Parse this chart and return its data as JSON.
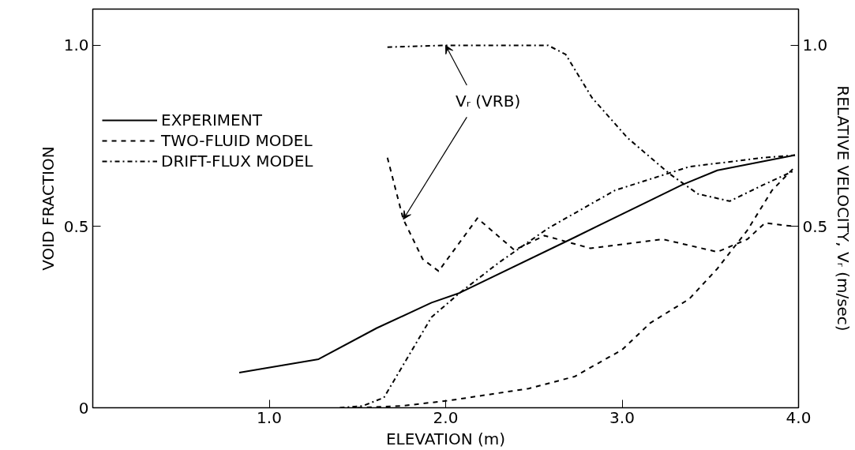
{
  "chart_data": {
    "type": "line",
    "xlabel": "ELEVATION (m)",
    "ylabel": "VOID FRACTION",
    "y2label": "RELATIVE VELOCITY, Vᵣ (m/sec)",
    "xlim": [
      0,
      4.0
    ],
    "xticks": [
      {
        "value": 1,
        "label": "1.0"
      },
      {
        "value": 2,
        "label": "2.0"
      },
      {
        "value": 3,
        "label": "3.0"
      },
      {
        "value": 4,
        "label": "4.0"
      }
    ],
    "ylim": [
      0,
      1.1
    ],
    "yticks": [
      0,
      0.5,
      {
        "value": 1,
        "label": "1.0"
      }
    ],
    "y2lim": [
      0,
      1.1
    ],
    "y2ticks": [
      0.5,
      {
        "value": 1,
        "label": "1.0"
      }
    ],
    "grid": false,
    "legend": "top left",
    "marker": "none",
    "annotations": [
      {
        "text": "Vᵣ (VRB)",
        "x": 2.0,
        "y": 1.0
      }
    ],
    "series": [
      {
        "name": "EXPERIMENT",
        "color": "#000000",
        "line_style": "solid",
        "x": [
          0.83,
          1.28,
          1.61,
          1.92,
          2.08,
          2.73,
          3.34,
          3.54,
          3.98
        ],
        "values": [
          0.097,
          0.134,
          0.22,
          0.29,
          0.317,
          0.47,
          0.615,
          0.655,
          0.697
        ]
      },
      {
        "name": "TWO-FLUID MODEL",
        "color": "#000000",
        "line_style": "dashed",
        "x": [
          1.5,
          1.75,
          2.02,
          2.47,
          2.73,
          3.0,
          3.16,
          3.38,
          3.54,
          3.71,
          3.85,
          3.98
        ],
        "values": [
          0.0,
          0.005,
          0.02,
          0.053,
          0.086,
          0.16,
          0.234,
          0.3,
          0.384,
          0.49,
          0.6,
          0.665
        ]
      },
      {
        "name": "DRIFT-FLUX MODEL",
        "color": "#000000",
        "line_style": "dashdot",
        "x": [
          1.4,
          1.53,
          1.65,
          1.78,
          1.92,
          2.08,
          2.3,
          2.58,
          2.96,
          3.38,
          3.8,
          3.98
        ],
        "values": [
          0.0,
          0.005,
          0.028,
          0.135,
          0.25,
          0.317,
          0.4,
          0.495,
          0.6,
          0.665,
          0.69,
          0.697
        ]
      },
      {
        "color": "#000000",
        "line_style": "dashed",
        "axis": "y2",
        "x": [
          1.67,
          1.76,
          1.87,
          1.96,
          2.18,
          2.39,
          2.56,
          2.82,
          3.23,
          3.54,
          3.71,
          3.81,
          3.98
        ],
        "values": [
          0.69,
          0.52,
          0.41,
          0.377,
          0.523,
          0.435,
          0.475,
          0.44,
          0.465,
          0.43,
          0.465,
          0.51,
          0.5
        ]
      },
      {
        "color": "#000000",
        "line_style": "dashdot",
        "axis": "y2",
        "x": [
          1.67,
          2.0,
          2.58,
          2.68,
          2.83,
          3.03,
          3.27,
          3.43,
          3.61,
          3.8,
          3.98
        ],
        "values": [
          0.995,
          1.0,
          1.0,
          0.975,
          0.855,
          0.745,
          0.645,
          0.59,
          0.57,
          0.615,
          0.655
        ]
      }
    ]
  }
}
